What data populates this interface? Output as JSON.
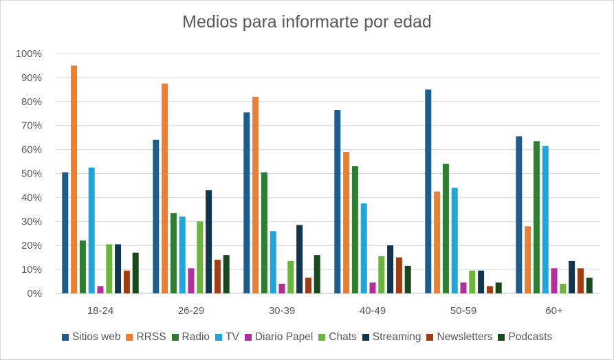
{
  "chart_data": {
    "type": "bar",
    "title": "Medios para informarte por edad",
    "categories": [
      "18-24",
      "26-29",
      "30-39",
      "40-49",
      "50-59",
      "60+"
    ],
    "ylim": [
      0,
      100
    ],
    "ytick_labels": [
      "0%",
      "10%",
      "20%",
      "30%",
      "40%",
      "50%",
      "60%",
      "70%",
      "80%",
      "90%",
      "100%"
    ],
    "grid": true,
    "legend_position": "bottom",
    "series": [
      {
        "name": "Sitios web",
        "color": "#1f5c8b",
        "values": [
          50.5,
          64,
          75.5,
          76.5,
          85,
          65.5
        ]
      },
      {
        "name": "RRSS",
        "color": "#ed7d31",
        "values": [
          95,
          87.5,
          82,
          59,
          42.5,
          28
        ]
      },
      {
        "name": "Radio",
        "color": "#2e7d32",
        "values": [
          22,
          33.5,
          50.5,
          53,
          54,
          63.5
        ]
      },
      {
        "name": "TV",
        "color": "#20a4dc",
        "values": [
          52.5,
          32,
          26,
          37.5,
          44,
          61.5
        ]
      },
      {
        "name": "Diario Papel",
        "color": "#b0309b",
        "values": [
          3,
          10.5,
          4,
          4.5,
          4.5,
          10.5
        ]
      },
      {
        "name": "Chats",
        "color": "#6cb33f",
        "values": [
          20.5,
          30,
          13.5,
          15.5,
          9.5,
          4
        ]
      },
      {
        "name": "Streaming",
        "color": "#10364f",
        "values": [
          20.5,
          43,
          28.5,
          20,
          9.5,
          13.5
        ]
      },
      {
        "name": "Newsletters",
        "color": "#9e3c14",
        "values": [
          9.5,
          14,
          6.5,
          15,
          3,
          10.5
        ]
      },
      {
        "name": "Podcasts",
        "color": "#174a1b",
        "values": [
          17,
          16,
          16,
          11.5,
          4.5,
          6.5
        ]
      }
    ]
  }
}
